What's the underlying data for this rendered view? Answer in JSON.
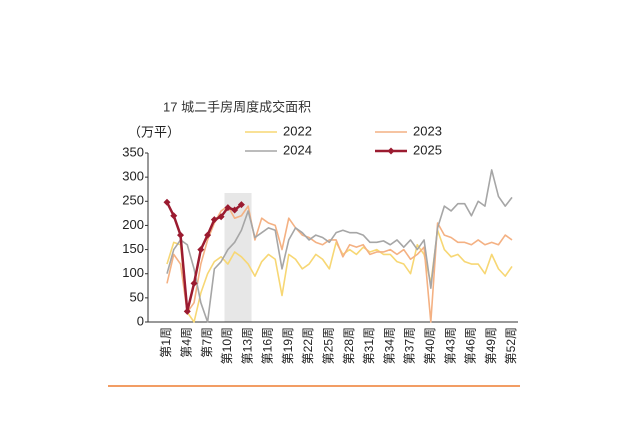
{
  "chart_data": {
    "type": "line",
    "title": "17 城二手房周度成交面积",
    "y_unit": "（万平）",
    "categories": [
      "第1周",
      null,
      null,
      "第4周",
      null,
      null,
      "第7周",
      null,
      null,
      "第10周",
      null,
      null,
      "第13周",
      null,
      null,
      "第16周",
      null,
      null,
      "第19周",
      null,
      null,
      "第22周",
      null,
      null,
      "第25周",
      null,
      null,
      "第28周",
      null,
      null,
      "第31周",
      null,
      null,
      "第34周",
      null,
      null,
      "第37周",
      null,
      null,
      "第40周",
      null,
      null,
      "第43周",
      null,
      null,
      "第46周",
      null,
      null,
      "第49周",
      null,
      null,
      "第52周"
    ],
    "series": [
      {
        "name": "2022",
        "color": "#f7d774",
        "values": [
          120,
          165,
          160,
          20,
          0,
          60,
          100,
          125,
          135,
          120,
          145,
          135,
          120,
          95,
          125,
          140,
          130,
          55,
          140,
          130,
          110,
          120,
          140,
          130,
          110,
          165,
          140,
          150,
          140,
          155,
          145,
          150,
          140,
          140,
          125,
          120,
          100,
          160,
          140,
          80,
          190,
          150,
          135,
          140,
          125,
          120,
          120,
          100,
          140,
          110,
          95,
          115
        ]
      },
      {
        "name": "2023",
        "color": "#f4b183",
        "values": [
          80,
          140,
          120,
          20,
          40,
          120,
          170,
          205,
          230,
          240,
          215,
          220,
          240,
          170,
          215,
          205,
          200,
          150,
          215,
          195,
          180,
          175,
          165,
          160,
          170,
          170,
          135,
          160,
          155,
          160,
          140,
          145,
          145,
          150,
          140,
          150,
          130,
          140,
          155,
          0,
          205,
          180,
          175,
          165,
          165,
          160,
          170,
          160,
          165,
          160,
          180,
          170
        ]
      },
      {
        "name": "2024",
        "color": "#a6a6a6",
        "values": [
          100,
          150,
          170,
          160,
          110,
          40,
          0,
          110,
          125,
          150,
          165,
          190,
          230,
          175,
          185,
          195,
          190,
          110,
          170,
          195,
          185,
          170,
          180,
          175,
          165,
          185,
          190,
          185,
          185,
          180,
          165,
          165,
          168,
          160,
          170,
          155,
          170,
          150,
          170,
          70,
          195,
          240,
          230,
          245,
          245,
          220,
          250,
          240,
          315,
          260,
          240,
          258
        ]
      },
      {
        "name": "2025",
        "color": "#9b1b30",
        "values": [
          248,
          220,
          180,
          22,
          80,
          150,
          180,
          212,
          218,
          237,
          232,
          243,
          null,
          null,
          null,
          null,
          null,
          null,
          null,
          null,
          null,
          null,
          null,
          null,
          null,
          null,
          null,
          null,
          null,
          null,
          null,
          null,
          null,
          null,
          null,
          null,
          null,
          null,
          null,
          null,
          null,
          null,
          null,
          null,
          null,
          null,
          null,
          null,
          null,
          null,
          null,
          null
        ]
      }
    ],
    "ylim": [
      0,
      350
    ],
    "yticks": [
      0,
      50,
      100,
      150,
      200,
      250,
      300,
      350
    ]
  }
}
